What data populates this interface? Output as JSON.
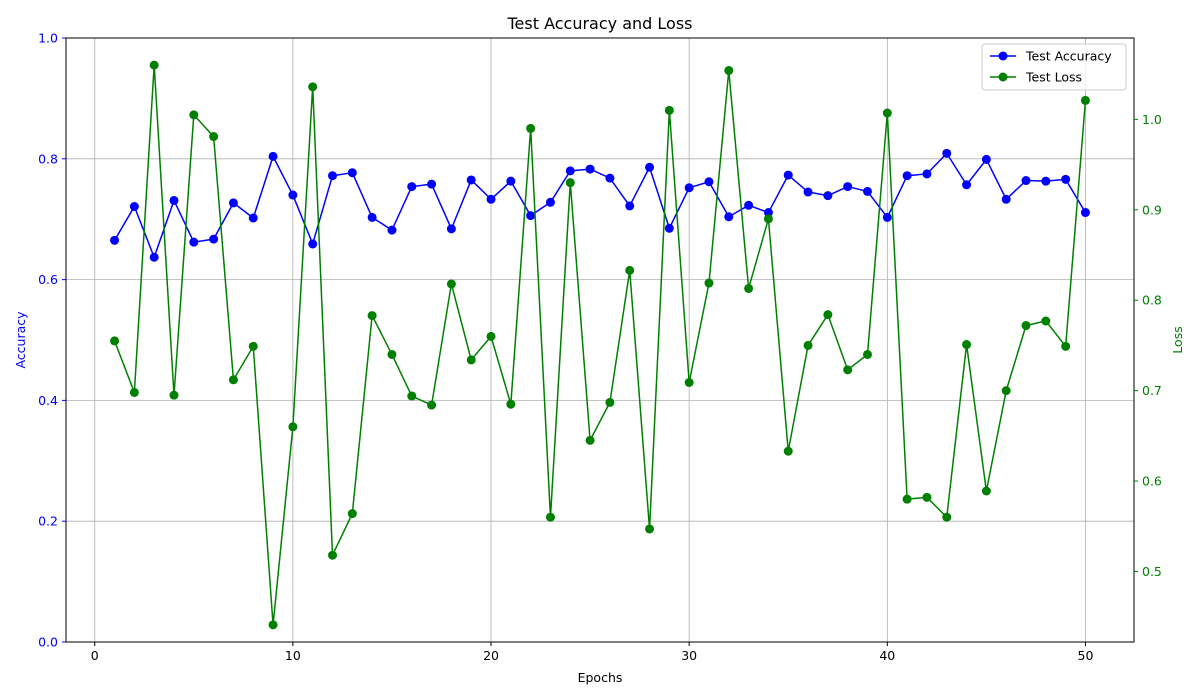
{
  "chart_data": {
    "type": "line",
    "title": "Test Accuracy and Loss",
    "xlabel": "Epochs",
    "ylabel_left": "Accuracy",
    "ylabel_right": "Loss",
    "xlim": [
      -1.45,
      52.45
    ],
    "ylim_left": [
      0.0,
      1.0
    ],
    "ylim_right": [
      0.422,
      1.09
    ],
    "x_ticks": [
      0,
      10,
      20,
      30,
      40,
      50
    ],
    "y_left_ticks": [
      0.0,
      0.2,
      0.4,
      0.6,
      0.8,
      1.0
    ],
    "y_right_ticks": [
      0.5,
      0.6,
      0.7,
      0.8,
      0.9,
      1.0
    ],
    "grid": true,
    "legend_position": "upper right",
    "x": [
      1,
      2,
      3,
      4,
      5,
      6,
      7,
      8,
      9,
      10,
      11,
      12,
      13,
      14,
      15,
      16,
      17,
      18,
      19,
      20,
      21,
      22,
      23,
      24,
      25,
      26,
      27,
      28,
      29,
      30,
      31,
      32,
      33,
      34,
      35,
      36,
      37,
      38,
      39,
      40,
      41,
      42,
      43,
      44,
      45,
      46,
      47,
      48,
      49,
      50
    ],
    "series": [
      {
        "name": "Test Accuracy",
        "axis": "left",
        "color": "#0000ff",
        "values": [
          0.665,
          0.721,
          0.637,
          0.731,
          0.662,
          0.667,
          0.727,
          0.702,
          0.804,
          0.74,
          0.659,
          0.772,
          0.777,
          0.703,
          0.682,
          0.754,
          0.758,
          0.684,
          0.765,
          0.733,
          0.763,
          0.706,
          0.728,
          0.78,
          0.783,
          0.768,
          0.722,
          0.786,
          0.685,
          0.752,
          0.762,
          0.704,
          0.723,
          0.711,
          0.773,
          0.745,
          0.739,
          0.754,
          0.746,
          0.703,
          0.772,
          0.775,
          0.809,
          0.757,
          0.799,
          0.733,
          0.764,
          0.763,
          0.766,
          0.711
        ]
      },
      {
        "name": "Test Loss",
        "axis": "right",
        "color": "#008000",
        "values": [
          0.755,
          0.698,
          1.06,
          0.695,
          1.005,
          0.981,
          0.712,
          0.749,
          0.441,
          0.66,
          1.036,
          0.518,
          0.564,
          0.783,
          0.74,
          0.694,
          0.684,
          0.818,
          0.734,
          0.76,
          0.685,
          0.99,
          0.56,
          0.93,
          0.645,
          0.687,
          0.833,
          0.547,
          1.01,
          0.709,
          0.819,
          1.054,
          0.813,
          0.89,
          0.633,
          0.75,
          0.784,
          0.723,
          0.74,
          1.007,
          0.58,
          0.582,
          0.56,
          0.751,
          0.589,
          0.7,
          0.772,
          0.777,
          0.749,
          1.021
        ]
      }
    ]
  }
}
